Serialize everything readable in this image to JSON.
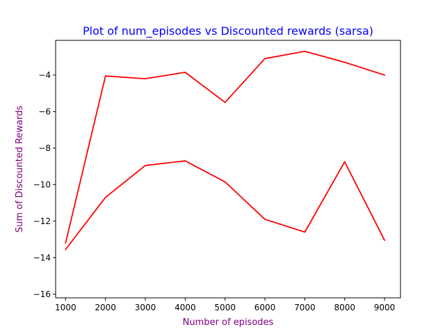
{
  "chart_data": {
    "type": "line",
    "title": "Plot of num_episodes vs Discounted rewards (sarsa)",
    "xlabel": "Number of episodes",
    "ylabel": "Sum of Discounted Rewards",
    "xlim": [
      750,
      9400
    ],
    "ylim": [
      -16.2,
      -2.1
    ],
    "xticks": [
      1000,
      2000,
      3000,
      4000,
      5000,
      6000,
      7000,
      8000,
      9000
    ],
    "yticks": [
      -16,
      -14,
      -12,
      -10,
      -8,
      -6,
      -4
    ],
    "grid": false,
    "legend": "none",
    "colors": {
      "title": "#0000ff",
      "axis_label": "#800080",
      "line": "#ff0000"
    },
    "series": [
      {
        "x": [
          1000,
          2000,
          3000,
          4000,
          5000,
          6000,
          7000,
          8000,
          9000
        ],
        "values": [
          -13.2,
          -4.05,
          -4.2,
          -3.85,
          -5.5,
          -3.1,
          -2.7,
          -3.3,
          -4.0
        ]
      },
      {
        "x": [
          1000,
          2000,
          3000,
          4000,
          5000,
          6000,
          7000,
          8000,
          9000
        ],
        "values": [
          -13.55,
          -10.7,
          -8.95,
          -8.7,
          -9.85,
          -11.9,
          -12.6,
          -8.75,
          -13.05
        ]
      }
    ]
  }
}
